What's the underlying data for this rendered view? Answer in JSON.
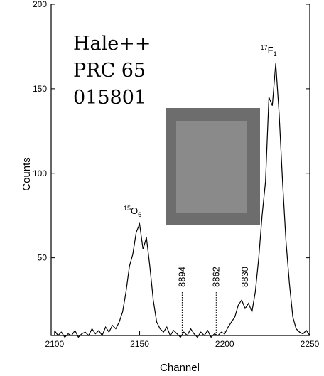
{
  "chart_data": {
    "type": "line",
    "x_label": "Channel",
    "y_label": "Counts",
    "xlim": [
      2098,
      2250
    ],
    "ylim": [
      4,
      200
    ],
    "xticks": [
      2100,
      2150,
      2200,
      2250
    ],
    "yticks": [
      50,
      100,
      150,
      200
    ],
    "color": "#000000",
    "x": [
      2100,
      2102,
      2104,
      2106,
      2108,
      2110,
      2112,
      2114,
      2116,
      2118,
      2120,
      2122,
      2124,
      2126,
      2128,
      2130,
      2132,
      2134,
      2136,
      2138,
      2140,
      2142,
      2144,
      2146,
      2148,
      2150,
      2152,
      2154,
      2156,
      2158,
      2160,
      2162,
      2164,
      2166,
      2168,
      2170,
      2172,
      2174,
      2176,
      2178,
      2180,
      2182,
      2184,
      2186,
      2188,
      2190,
      2192,
      2194,
      2196,
      2198,
      2200,
      2202,
      2204,
      2206,
      2208,
      2210,
      2212,
      2214,
      2216,
      2218,
      2220,
      2222,
      2224,
      2226,
      2228,
      2230,
      2232,
      2234,
      2236,
      2238,
      2240,
      2242,
      2244,
      2246,
      2248,
      2250
    ],
    "values": [
      7,
      4,
      6,
      3,
      5,
      4,
      7,
      3,
      5,
      6,
      4,
      8,
      5,
      7,
      4,
      9,
      6,
      10,
      8,
      12,
      18,
      30,
      45,
      52,
      65,
      70,
      55,
      62,
      45,
      25,
      12,
      8,
      6,
      9,
      4,
      7,
      5,
      3,
      6,
      4,
      8,
      5,
      3,
      6,
      4,
      7,
      3,
      5,
      4,
      6,
      5,
      9,
      12,
      15,
      22,
      25,
      20,
      23,
      18,
      30,
      50,
      75,
      95,
      145,
      140,
      165,
      135,
      95,
      60,
      35,
      15,
      8,
      6,
      5,
      7,
      4
    ],
    "peaks": [
      {
        "mass": "15",
        "symbol": "O",
        "index": "6",
        "x": 2150,
        "y": 70
      },
      {
        "mass": "17",
        "symbol": "F",
        "index": "1",
        "x": 2230,
        "y": 165
      }
    ],
    "markers": [
      {
        "x": 2175,
        "label": "8894",
        "line": true
      },
      {
        "x": 2195,
        "label": "8862",
        "line": true
      },
      {
        "x": 2212,
        "label": "8830",
        "line": false
      }
    ],
    "note": [
      "Hale++",
      "PRC 65",
      "015801"
    ]
  }
}
